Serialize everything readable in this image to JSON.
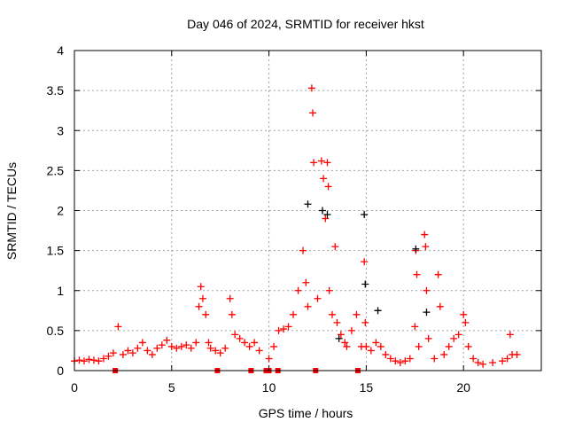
{
  "chart_data": {
    "type": "scatter",
    "title": "Day 046 of 2024, SRMTID for receiver hkst",
    "xlabel": "GPS time / hours",
    "ylabel": "SRMTID / TECUs",
    "xlim": [
      0,
      24
    ],
    "ylim": [
      0,
      4
    ],
    "xticks": [
      0,
      5,
      10,
      15,
      20
    ],
    "yticks": [
      0,
      0.5,
      1,
      1.5,
      2,
      2.5,
      3,
      3.5,
      4
    ],
    "ytick_labels": [
      "0",
      "0.5",
      "1",
      "1.5",
      "2",
      "2.5",
      "3",
      "3.5",
      "4"
    ],
    "grid": true,
    "series": [
      {
        "name": "red",
        "color": "#ff0000",
        "marker": "plus",
        "points": [
          [
            0,
            0.12
          ],
          [
            0.25,
            0.13
          ],
          [
            0.5,
            0.12
          ],
          [
            0.75,
            0.14
          ],
          [
            1,
            0.13
          ],
          [
            1.25,
            0.12
          ],
          [
            1.5,
            0.15
          ],
          [
            1.75,
            0.18
          ],
          [
            2,
            0.22
          ],
          [
            2.25,
            0.55
          ],
          [
            2.5,
            0.2
          ],
          [
            2.75,
            0.25
          ],
          [
            3,
            0.22
          ],
          [
            3.25,
            0.28
          ],
          [
            3.5,
            0.35
          ],
          [
            3.75,
            0.25
          ],
          [
            4,
            0.2
          ],
          [
            4.25,
            0.28
          ],
          [
            4.5,
            0.32
          ],
          [
            4.75,
            0.38
          ],
          [
            5,
            0.3
          ],
          [
            5.25,
            0.28
          ],
          [
            5.5,
            0.3
          ],
          [
            5.75,
            0.32
          ],
          [
            6,
            0.28
          ],
          [
            6.25,
            0.35
          ],
          [
            6.4,
            0.8
          ],
          [
            6.5,
            1.05
          ],
          [
            6.6,
            0.9
          ],
          [
            6.75,
            0.7
          ],
          [
            6.9,
            0.35
          ],
          [
            7,
            0.28
          ],
          [
            7.25,
            0.25
          ],
          [
            7.5,
            0.22
          ],
          [
            7.75,
            0.28
          ],
          [
            8,
            0.9
          ],
          [
            8.1,
            0.7
          ],
          [
            8.25,
            0.45
          ],
          [
            8.5,
            0.4
          ],
          [
            8.75,
            0.35
          ],
          [
            9,
            0.3
          ],
          [
            9.25,
            0.35
          ],
          [
            9.5,
            0.25
          ],
          [
            10,
            0.15
          ],
          [
            10.25,
            0.3
          ],
          [
            10.5,
            0.5
          ],
          [
            10.75,
            0.52
          ],
          [
            11,
            0.55
          ],
          [
            11.25,
            0.7
          ],
          [
            11.5,
            1.0
          ],
          [
            11.75,
            1.5
          ],
          [
            11.9,
            1.1
          ],
          [
            12,
            0.8
          ],
          [
            12.2,
            3.53
          ],
          [
            12.25,
            3.22
          ],
          [
            12.3,
            2.6
          ],
          [
            12.5,
            0.9
          ],
          [
            12.7,
            2.62
          ],
          [
            12.8,
            2.4
          ],
          [
            12.9,
            1.9
          ],
          [
            13,
            2.6
          ],
          [
            13.05,
            2.3
          ],
          [
            13.1,
            1.0
          ],
          [
            13.25,
            0.7
          ],
          [
            13.4,
            1.55
          ],
          [
            13.5,
            0.6
          ],
          [
            13.7,
            0.45
          ],
          [
            13.9,
            0.35
          ],
          [
            14,
            0.3
          ],
          [
            14.25,
            0.5
          ],
          [
            14.5,
            0.7
          ],
          [
            14.75,
            0.3
          ],
          [
            14.9,
            1.36
          ],
          [
            14.95,
            0.6
          ],
          [
            15,
            0.3
          ],
          [
            15.25,
            0.25
          ],
          [
            15.5,
            0.35
          ],
          [
            15.75,
            0.3
          ],
          [
            16,
            0.2
          ],
          [
            16.25,
            0.15
          ],
          [
            16.5,
            0.12
          ],
          [
            16.75,
            0.1
          ],
          [
            17,
            0.12
          ],
          [
            17.25,
            0.15
          ],
          [
            17.5,
            0.55
          ],
          [
            17.55,
            1.5
          ],
          [
            17.6,
            1.2
          ],
          [
            17.7,
            0.3
          ],
          [
            18,
            1.7
          ],
          [
            18.05,
            1.55
          ],
          [
            18.1,
            1.0
          ],
          [
            18.2,
            0.4
          ],
          [
            18.5,
            0.15
          ],
          [
            18.7,
            1.2
          ],
          [
            18.8,
            0.8
          ],
          [
            19,
            0.2
          ],
          [
            19.25,
            0.3
          ],
          [
            19.5,
            0.4
          ],
          [
            19.75,
            0.45
          ],
          [
            20,
            0.7
          ],
          [
            20.1,
            0.6
          ],
          [
            20.25,
            0.3
          ],
          [
            20.5,
            0.15
          ],
          [
            20.75,
            0.1
          ],
          [
            21,
            0.08
          ],
          [
            21.5,
            0.1
          ],
          [
            22,
            0.12
          ],
          [
            22.25,
            0.15
          ],
          [
            22.4,
            0.45
          ],
          [
            22.5,
            0.2
          ],
          [
            22.75,
            0.2
          ]
        ]
      },
      {
        "name": "black",
        "color": "#000000",
        "marker": "plus",
        "points": [
          [
            12.0,
            2.08
          ],
          [
            12.75,
            2.0
          ],
          [
            13.0,
            1.95
          ],
          [
            13.6,
            0.4
          ],
          [
            14.9,
            1.95
          ],
          [
            14.95,
            1.08
          ],
          [
            15.6,
            0.75
          ],
          [
            17.55,
            1.52
          ],
          [
            18.1,
            0.73
          ]
        ]
      },
      {
        "name": "zero-flags",
        "color": "#ff0000",
        "marker": "square",
        "points": [
          [
            2.1,
            0
          ],
          [
            7.35,
            0
          ],
          [
            9.08,
            0
          ],
          [
            9.86,
            0
          ],
          [
            10.0,
            0
          ],
          [
            10.46,
            0
          ],
          [
            12.4,
            0
          ],
          [
            14.57,
            0
          ]
        ]
      }
    ]
  }
}
